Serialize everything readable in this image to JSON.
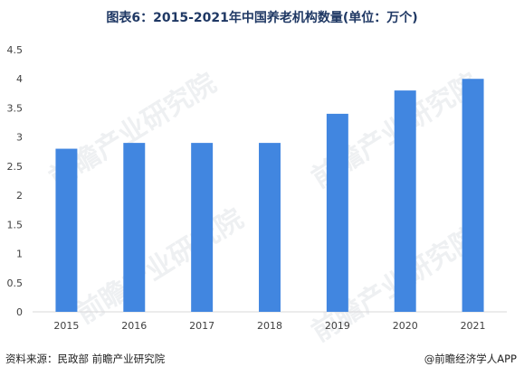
{
  "title": "图表6：2015-2021年中国养老机构数量(单位：万个)",
  "source": "资料来源：民政部 前瞻产业研究院",
  "brand": "@前瞻经济学人APP",
  "watermark": "前瞻产业研究院",
  "colors": {
    "bar": "#4186e0",
    "title": "#1f3864",
    "grid": "#d9d9d9",
    "text": "#404040"
  },
  "chart_data": {
    "type": "bar",
    "categories": [
      "2015",
      "2016",
      "2017",
      "2018",
      "2019",
      "2020",
      "2021"
    ],
    "values": [
      2.8,
      2.9,
      2.9,
      2.9,
      3.4,
      3.8,
      4.0
    ],
    "ylim": [
      0,
      4.5
    ],
    "yticks": [
      "0",
      "0.5",
      "1",
      "1.5",
      "2",
      "2.5",
      "3",
      "3.5",
      "4",
      "4.5"
    ],
    "grid": false,
    "xlabel": "",
    "ylabel": ""
  }
}
